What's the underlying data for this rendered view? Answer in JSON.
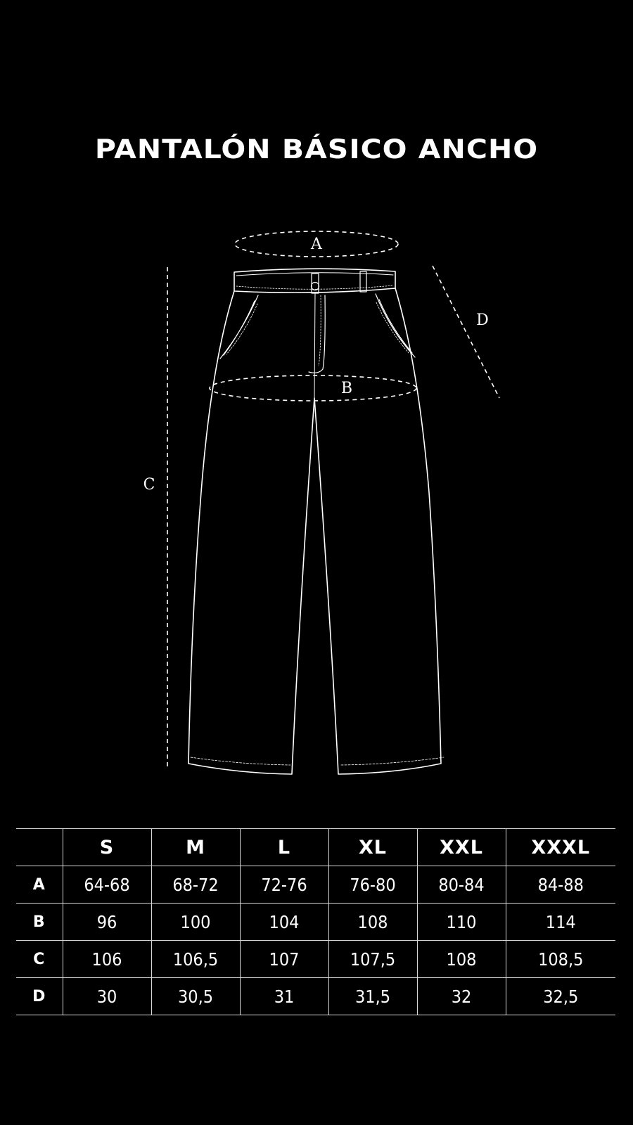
{
  "title": "PANTALÓN BÁSICO ANCHO",
  "diagram": {
    "labels": {
      "A": "A",
      "B": "B",
      "C": "C",
      "D": "D"
    }
  },
  "size_table": {
    "columns": [
      "S",
      "M",
      "L",
      "XL",
      "XXL",
      "XXXL"
    ],
    "rows": [
      {
        "label": "A",
        "values": [
          "64-68",
          "68-72",
          "72-76",
          "76-80",
          "80-84",
          "84-88"
        ]
      },
      {
        "label": "B",
        "values": [
          "96",
          "100",
          "104",
          "108",
          "110",
          "114"
        ]
      },
      {
        "label": "C",
        "values": [
          "106",
          "106,5",
          "107",
          "107,5",
          "108",
          "108,5"
        ]
      },
      {
        "label": "D",
        "values": [
          "30",
          "30,5",
          "31",
          "31,5",
          "32",
          "32,5"
        ]
      }
    ]
  },
  "colors": {
    "background": "#000000",
    "foreground": "#ffffff",
    "rule": "#d8d8d8"
  }
}
